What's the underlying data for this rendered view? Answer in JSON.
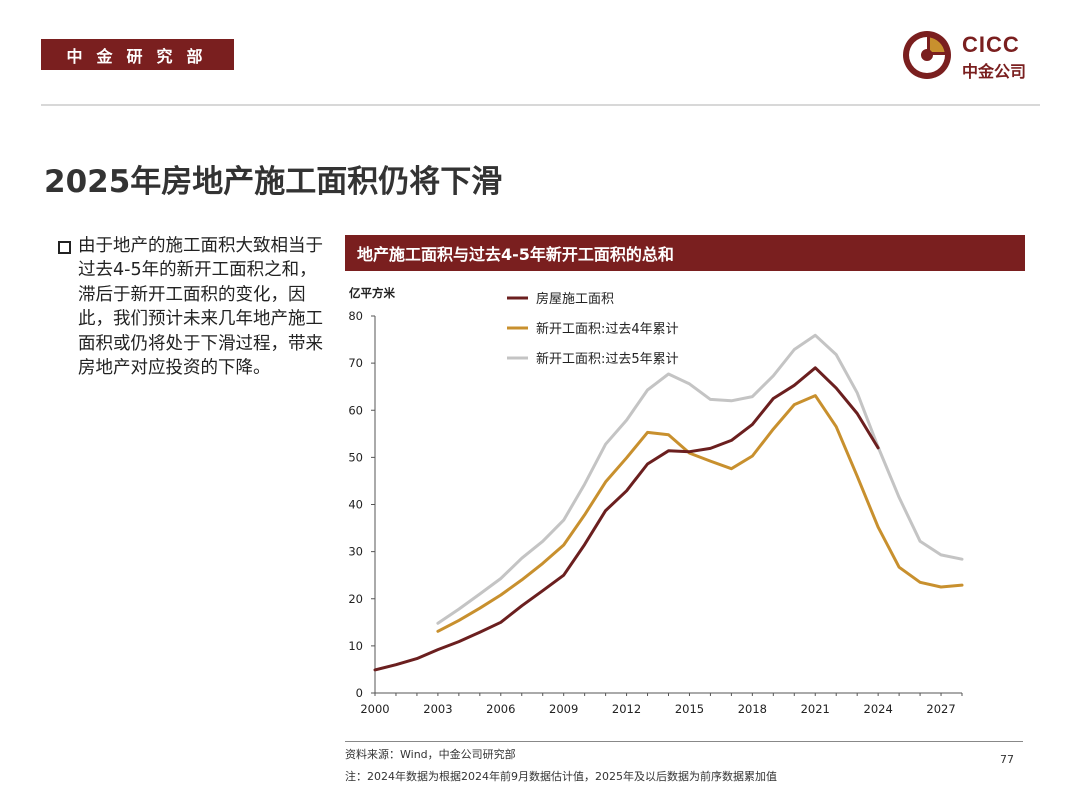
{
  "header": {
    "department": "中金研究部",
    "logo_en": "CICC",
    "logo_cn": "中金公司"
  },
  "title": "2025年房地产施工面积仍将下滑",
  "bullet": {
    "icon": "checkbox-bullet-icon",
    "text": "由于地产的施工面积大致相当于过去4-5年的新开工面积之和，滞后于新开工面积的变化，因此，我们预计未来几年地产施工面积或仍将处于下滑过程，带来房地产对应投资的下降。"
  },
  "chart_header": "地产施工面积与过去4-5年新开工面积的总和",
  "chart_data": {
    "type": "line",
    "title": "地产施工面积与过去4-5年新开工面积的总和",
    "ylabel": "亿平方米",
    "xlabel": "",
    "xlim": [
      2000,
      2028
    ],
    "ylim": [
      0,
      80
    ],
    "yticks": [
      0,
      10,
      20,
      30,
      40,
      50,
      60,
      70,
      80
    ],
    "xticks": [
      2000,
      2003,
      2006,
      2009,
      2012,
      2015,
      2018,
      2021,
      2024,
      2027
    ],
    "legend_position": "top-left",
    "series": [
      {
        "name": "房屋施工面积",
        "color": "#6b1f1f",
        "x": [
          2000,
          2001,
          2002,
          2003,
          2004,
          2005,
          2006,
          2007,
          2008,
          2009,
          2010,
          2011,
          2012,
          2013,
          2014,
          2015,
          2016,
          2017,
          2018,
          2019,
          2020,
          2021,
          2022,
          2023,
          2024
        ],
        "values": [
          4.9,
          6.0,
          7.3,
          9.2,
          10.9,
          12.9,
          15.0,
          18.5,
          21.7,
          25.0,
          31.5,
          38.7,
          42.9,
          48.6,
          51.4,
          51.2,
          51.9,
          53.6,
          57.0,
          62.5,
          65.3,
          69.0,
          64.7,
          59.3,
          52.0
        ]
      },
      {
        "name": "新开工面积:过去4年累计",
        "color": "#c8902e",
        "x": [
          2003,
          2004,
          2005,
          2006,
          2007,
          2008,
          2009,
          2010,
          2011,
          2012,
          2013,
          2014,
          2015,
          2016,
          2017,
          2018,
          2019,
          2020,
          2021,
          2022,
          2023,
          2024,
          2025,
          2026,
          2027,
          2028
        ],
        "values": [
          13.1,
          15.4,
          18.0,
          20.8,
          24.0,
          27.5,
          31.4,
          37.8,
          44.8,
          49.9,
          55.3,
          54.8,
          50.9,
          49.2,
          47.6,
          50.3,
          56.0,
          61.2,
          63.1,
          56.5,
          46.0,
          35.2,
          26.7,
          23.5,
          22.5,
          22.9
        ]
      },
      {
        "name": "新开工面积:过去5年累计",
        "color": "#c4c4c4",
        "x": [
          2003,
          2004,
          2005,
          2006,
          2007,
          2008,
          2009,
          2010,
          2011,
          2012,
          2013,
          2014,
          2015,
          2016,
          2017,
          2018,
          2019,
          2020,
          2021,
          2022,
          2023,
          2024,
          2025,
          2026,
          2027,
          2028
        ],
        "values": [
          14.8,
          17.8,
          21.0,
          24.3,
          28.6,
          32.2,
          36.7,
          44.3,
          52.8,
          57.9,
          64.3,
          67.7,
          65.6,
          62.3,
          62.0,
          62.9,
          67.3,
          72.9,
          75.9,
          71.8,
          63.7,
          52.2,
          41.5,
          32.2,
          29.3,
          28.4
        ]
      }
    ]
  },
  "footer": {
    "source": "资料来源：Wind，中金公司研究部",
    "note": "注：2024年数据为根据2024年前9月数据估计值，2025年及以后数据为前序数据累加值",
    "page": "77"
  }
}
